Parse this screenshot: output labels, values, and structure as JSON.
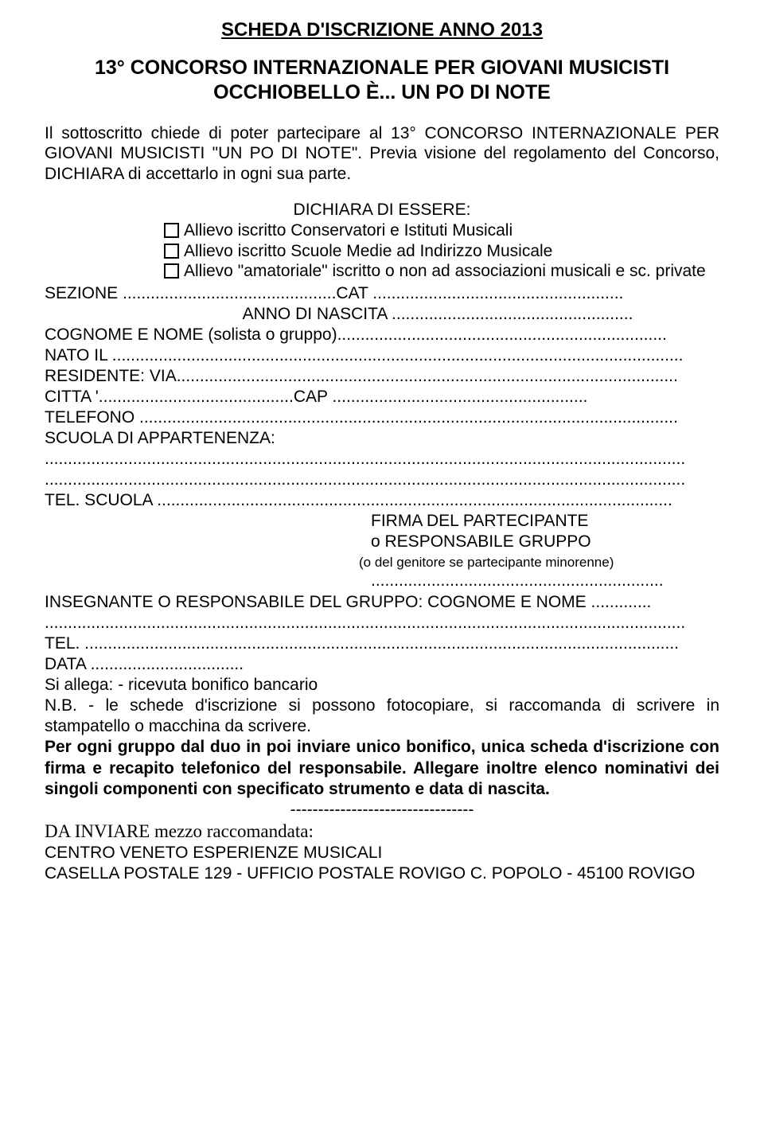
{
  "title_main": "SCHEDA D'ISCRIZIONE ANNO 2013",
  "title_sub": "13° CONCORSO INTERNAZIONALE PER GIOVANI MUSICISTI OCCHIOBELLO È... UN PO DI NOTE",
  "intro": "Il sottoscritto chiede di poter partecipare al 13° CONCORSO INTERNAZIONALE PER GIOVANI MUSICISTI \"UN PO DI NOTE\". Previa visione del regolamento del Concorso, DICHIARA di accettarlo in ogni sua parte.",
  "declare_head": "DICHIARA DI ESSERE:",
  "opt1": "Allievo iscritto Conservatori e Istituti Musicali",
  "opt2": "Allievo iscritto Scuole Medie ad Indirizzo Musicale",
  "opt3": "Allievo \"amatoriale\" iscritto o non ad associazioni musicali e sc. private",
  "sezione": "SEZIONE ..............................................CAT ......................................................",
  "anno": "ANNO DI NASCITA ....................................................",
  "cognome": "COGNOME E  NOME (solista o gruppo).......................................................................",
  "nato": "NATO IL ...........................................................................................................................",
  "residente": "RESIDENTE: VIA............................................................................................................",
  "citta": "CITTA '..........................................CAP .......................................................",
  "telefono": "TELEFONO ....................................................................................................................",
  "scuola_app": "SCUOLA DI APPARTENENZA:",
  "dots1": "..........................................................................................................................................",
  "dots2": "..........................................................................................................................................",
  "tel_scuola": "TEL. SCUOLA ...............................................................................................................",
  "sig1": "FIRMA DEL PARTECIPANTE",
  "sig2": "o RESPONSABILE GRUPPO",
  "sig_small": "(o del genitore se partecipante minorenne)",
  "sig_dots": "...............................................................",
  "insegnante": "INSEGNANTE O RESPONSABILE DEL GRUPPO: COGNOME E NOME .............",
  "dots3": "..........................................................................................................................................",
  "tel_line": "TEL. ................................................................................................................................",
  "data_line": "DATA .................................",
  "allega": "Si allega: - ricevuta bonifico bancario",
  "nb": "N.B. - le schede d'iscrizione si possono fotocopiare, si raccomanda di scrivere in stampatello o macchina da scrivere.",
  "bold_para": "Per ogni gruppo dal duo in poi inviare unico bonifico, unica scheda d'iscrizione con firma e recapito telefonico del responsabile. Allegare inoltre elenco nominativi dei singoli componenti con specificato strumento e data di nascita.",
  "dashes": "---------------------------------",
  "send": "DA INVIARE mezzo raccomandata:",
  "addr1": "CENTRO VENETO ESPERIENZE MUSICALI",
  "addr2": "CASELLA POSTALE 129 - UFFICIO POSTALE ROVIGO C. POPOLO - 45100 ROVIGO"
}
